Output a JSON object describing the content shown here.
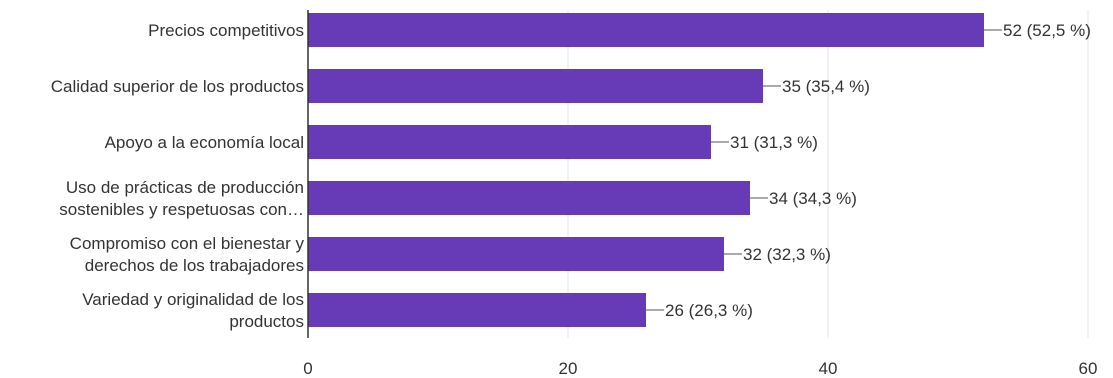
{
  "chart_data": {
    "type": "bar",
    "orientation": "horizontal",
    "title": "",
    "xlabel": "",
    "ylabel": "",
    "categories": [
      [
        "Precios competitivos"
      ],
      [
        "Calidad superior de los productos"
      ],
      [
        "Apoyo a la economía local"
      ],
      [
        "Uso de prácticas de producción",
        "sostenibles y respetuosas con…"
      ],
      [
        "Compromiso con el bienestar y",
        "derechos de los trabajadores"
      ],
      [
        "Variedad y originalidad de los",
        "productos"
      ]
    ],
    "values": [
      52,
      35,
      31,
      34,
      32,
      26
    ],
    "data_labels": [
      "52 (52,5 %)",
      "35 (35,4 %)",
      "31 (31,3 %)",
      "34 (34,3 %)",
      "32 (32,3 %)",
      "26 (26,3 %)"
    ],
    "xlim": [
      0,
      60
    ],
    "x_ticks": [
      0,
      20,
      40,
      60
    ],
    "x_tick_labels": [
      "0",
      "20",
      "40",
      "60"
    ],
    "grid": true,
    "legend": "none",
    "colors": {
      "bar": "#673ab7",
      "grid": "#e6e6e6",
      "axis": "#333333",
      "text": "#333333"
    }
  }
}
